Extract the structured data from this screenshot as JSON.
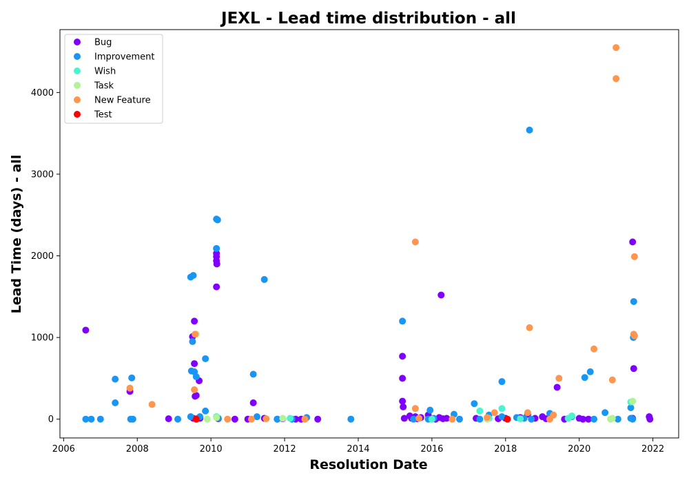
{
  "chart_data": {
    "type": "scatter",
    "title": "JEXL - Lead time distribution - all",
    "xlabel": "Resolution Date",
    "ylabel": "Lead Time (days) - all",
    "xlim": [
      2005.9,
      2022.7
    ],
    "ylim": [
      -230,
      4770
    ],
    "xticks": [
      2006,
      2008,
      2010,
      2012,
      2014,
      2016,
      2018,
      2020,
      2022
    ],
    "xtick_labels": [
      "2006",
      "2008",
      "2010",
      "2012",
      "2014",
      "2016",
      "2018",
      "2020",
      "2022"
    ],
    "yticks": [
      0,
      1000,
      2000,
      3000,
      4000
    ],
    "ytick_labels": [
      "0",
      "1000",
      "2000",
      "3000",
      "4000"
    ],
    "grid": false,
    "legend_position": "top-left",
    "series": [
      {
        "name": "Bug",
        "color": "#8000ff",
        "points": [
          [
            2006.6,
            1090
          ],
          [
            2007.8,
            340
          ],
          [
            2008.85,
            5
          ],
          [
            2009.5,
            1010
          ],
          [
            2009.52,
            10
          ],
          [
            2009.55,
            1200
          ],
          [
            2009.55,
            680
          ],
          [
            2009.57,
            280
          ],
          [
            2009.6,
            290
          ],
          [
            2009.62,
            5
          ],
          [
            2009.68,
            470
          ],
          [
            2009.7,
            10
          ],
          [
            2010.15,
            2030
          ],
          [
            2010.15,
            1990
          ],
          [
            2010.15,
            1940
          ],
          [
            2010.16,
            1900
          ],
          [
            2010.15,
            1620
          ],
          [
            2010.2,
            5
          ],
          [
            2010.65,
            0
          ],
          [
            2011.0,
            0
          ],
          [
            2011.15,
            200
          ],
          [
            2011.45,
            10
          ],
          [
            2011.8,
            0
          ],
          [
            2011.95,
            5
          ],
          [
            2012.3,
            0
          ],
          [
            2012.45,
            0
          ],
          [
            2012.9,
            0
          ],
          [
            2015.2,
            770
          ],
          [
            2015.2,
            500
          ],
          [
            2015.2,
            220
          ],
          [
            2015.22,
            150
          ],
          [
            2015.25,
            10
          ],
          [
            2015.4,
            40
          ],
          [
            2015.45,
            10
          ],
          [
            2015.55,
            30
          ],
          [
            2015.6,
            5
          ],
          [
            2015.7,
            20
          ],
          [
            2015.9,
            50
          ],
          [
            2016.1,
            0
          ],
          [
            2016.2,
            20
          ],
          [
            2016.25,
            1520
          ],
          [
            2016.3,
            5
          ],
          [
            2016.4,
            10
          ],
          [
            2017.2,
            10
          ],
          [
            2017.8,
            5
          ],
          [
            2018.0,
            10
          ],
          [
            2018.4,
            20
          ],
          [
            2018.6,
            60
          ],
          [
            2018.8,
            10
          ],
          [
            2019.0,
            30
          ],
          [
            2019.1,
            5
          ],
          [
            2019.4,
            390
          ],
          [
            2019.6,
            0
          ],
          [
            2020.0,
            10
          ],
          [
            2020.1,
            0
          ],
          [
            2020.25,
            0
          ],
          [
            2021.45,
            2170
          ],
          [
            2021.48,
            620
          ],
          [
            2021.45,
            10
          ],
          [
            2021.9,
            30
          ],
          [
            2021.92,
            0
          ]
        ]
      },
      {
        "name": "Improvement",
        "color": "#1996f3",
        "points": [
          [
            2006.6,
            0
          ],
          [
            2006.75,
            0
          ],
          [
            2007.0,
            0
          ],
          [
            2007.4,
            490
          ],
          [
            2007.4,
            200
          ],
          [
            2007.85,
            505
          ],
          [
            2007.82,
            0
          ],
          [
            2007.88,
            0
          ],
          [
            2009.1,
            0
          ],
          [
            2009.45,
            1740
          ],
          [
            2009.52,
            1760
          ],
          [
            2009.47,
            590
          ],
          [
            2009.55,
            580
          ],
          [
            2009.6,
            520
          ],
          [
            2009.5,
            950
          ],
          [
            2009.45,
            30
          ],
          [
            2009.7,
            30
          ],
          [
            2009.85,
            740
          ],
          [
            2009.85,
            100
          ],
          [
            2010.15,
            2450
          ],
          [
            2010.18,
            2440
          ],
          [
            2010.15,
            2090
          ],
          [
            2010.2,
            10
          ],
          [
            2011.15,
            550
          ],
          [
            2011.25,
            30
          ],
          [
            2011.45,
            1710
          ],
          [
            2011.8,
            0
          ],
          [
            2012.2,
            0
          ],
          [
            2012.6,
            20
          ],
          [
            2013.8,
            0
          ],
          [
            2015.2,
            1200
          ],
          [
            2015.5,
            0
          ],
          [
            2015.95,
            110
          ],
          [
            2015.9,
            0
          ],
          [
            2016.05,
            10
          ],
          [
            2016.6,
            60
          ],
          [
            2016.75,
            0
          ],
          [
            2017.15,
            190
          ],
          [
            2017.3,
            0
          ],
          [
            2017.55,
            50
          ],
          [
            2017.9,
            460
          ],
          [
            2017.9,
            30
          ],
          [
            2018.3,
            20
          ],
          [
            2018.5,
            10
          ],
          [
            2018.65,
            3540
          ],
          [
            2018.7,
            0
          ],
          [
            2019.2,
            70
          ],
          [
            2019.8,
            30
          ],
          [
            2020.15,
            510
          ],
          [
            2020.3,
            580
          ],
          [
            2020.4,
            0
          ],
          [
            2020.7,
            80
          ],
          [
            2021.05,
            0
          ],
          [
            2021.4,
            140
          ],
          [
            2021.48,
            1440
          ],
          [
            2021.47,
            1000
          ],
          [
            2021.4,
            10
          ],
          [
            2021.45,
            0
          ]
        ]
      },
      {
        "name": "Wish",
        "color": "#4df3ce",
        "points": [
          [
            2010.15,
            30
          ],
          [
            2012.15,
            10
          ],
          [
            2016.0,
            0
          ],
          [
            2017.3,
            100
          ],
          [
            2017.55,
            10
          ],
          [
            2017.9,
            130
          ],
          [
            2018.4,
            5
          ],
          [
            2019.7,
            10
          ],
          [
            2019.8,
            40
          ],
          [
            2021.4,
            210
          ]
        ]
      },
      {
        "name": "Task",
        "color": "#b2f396",
        "points": [
          [
            2009.6,
            1040
          ],
          [
            2009.9,
            0
          ],
          [
            2010.15,
            20
          ],
          [
            2011.95,
            10
          ],
          [
            2017.5,
            0
          ],
          [
            2020.85,
            0
          ],
          [
            2020.9,
            10
          ],
          [
            2021.45,
            220
          ]
        ]
      },
      {
        "name": "New Feature",
        "color": "#ff964f",
        "points": [
          [
            2007.8,
            380
          ],
          [
            2008.4,
            180
          ],
          [
            2009.55,
            360
          ],
          [
            2009.57,
            1040
          ],
          [
            2010.45,
            0
          ],
          [
            2011.1,
            0
          ],
          [
            2011.5,
            5
          ],
          [
            2012.55,
            0
          ],
          [
            2015.55,
            2170
          ],
          [
            2015.55,
            130
          ],
          [
            2015.65,
            10
          ],
          [
            2016.55,
            0
          ],
          [
            2017.5,
            20
          ],
          [
            2017.7,
            80
          ],
          [
            2018.6,
            80
          ],
          [
            2018.65,
            1120
          ],
          [
            2019.2,
            0
          ],
          [
            2019.3,
            50
          ],
          [
            2019.45,
            500
          ],
          [
            2020.4,
            860
          ],
          [
            2020.9,
            480
          ],
          [
            2021.0,
            4550
          ],
          [
            2021.0,
            4170
          ],
          [
            2021.5,
            1990
          ],
          [
            2021.48,
            1040
          ],
          [
            2021.5,
            1020
          ]
        ]
      },
      {
        "name": "Test",
        "color": "#ff0000",
        "points": [
          [
            2009.6,
            0
          ],
          [
            2018.05,
            0
          ]
        ]
      }
    ]
  }
}
